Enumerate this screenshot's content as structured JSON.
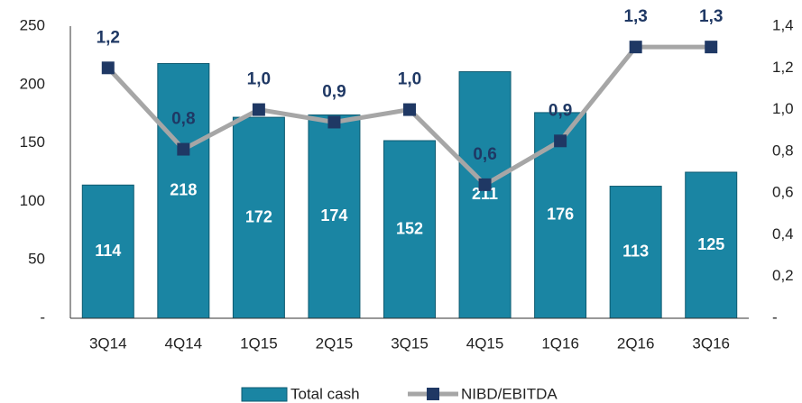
{
  "chart_data": {
    "type": "bar+line",
    "categories": [
      "3Q14",
      "4Q14",
      "1Q15",
      "2Q15",
      "3Q15",
      "4Q15",
      "1Q16",
      "2Q16",
      "3Q16"
    ],
    "series": [
      {
        "name": "Total cash",
        "type": "bar",
        "color": "#1a85a3",
        "values": [
          114,
          218,
          172,
          174,
          152,
          211,
          176,
          113,
          125
        ]
      },
      {
        "name": "NIBD/EBITDA",
        "type": "line",
        "axis": "y2",
        "color": "#a6a6a6",
        "marker_color": "#1f3864",
        "values": [
          1.2,
          0.81,
          1.0,
          0.94,
          1.0,
          0.64,
          0.85,
          1.3,
          1.3
        ],
        "value_labels": [
          "1,2",
          "0,8",
          "1,0",
          "0,9",
          "1,0",
          "0,6",
          "0,9",
          "1,3",
          "1,3"
        ]
      }
    ],
    "ylim": [
      0,
      250
    ],
    "yticks": [
      {
        "value": 0,
        "label": "-"
      },
      50,
      100,
      150,
      200,
      250
    ],
    "y2lim": [
      0,
      1.4
    ],
    "y2ticks": [
      {
        "value": 0,
        "label": "-"
      },
      {
        "value": 0.2,
        "label": "0,2"
      },
      {
        "value": 0.4,
        "label": "0,4"
      },
      {
        "value": 0.6,
        "label": "0,6"
      },
      {
        "value": 0.8,
        "label": "0,8"
      },
      {
        "value": 1.0,
        "label": "1,0"
      },
      {
        "value": 1.2,
        "label": "1,2"
      },
      {
        "value": 1.4,
        "label": "1,4"
      }
    ],
    "legend": "bottom"
  }
}
